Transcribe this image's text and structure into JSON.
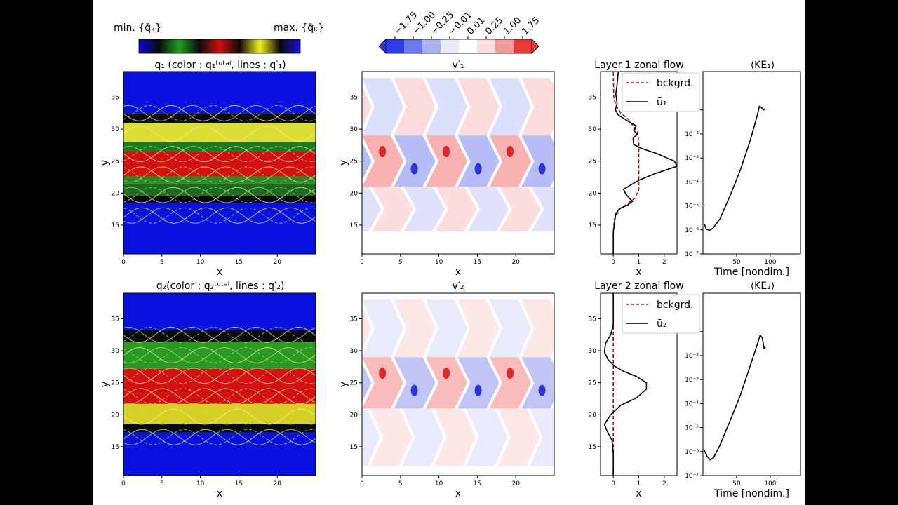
{
  "topbar": {
    "min_label": "min. {q̄ₖ}",
    "max_label": "max. {q̄ₖ}",
    "diverging_ticks": [
      "−1.75",
      "−1.00",
      "−0.25",
      "−0.01",
      "0.01",
      "0.25",
      "1.00",
      "1.75"
    ],
    "diverging_colors": [
      "#2d3de8",
      "#6b78ee",
      "#a9b1f3",
      "#e8eaf8",
      "#ffffff",
      "#fbdede",
      "#f39a9a",
      "#ec3a3a"
    ],
    "sequential_colors": [
      "#0a0ad8",
      "#0a0a0a",
      "#20a020",
      "#0a0a0a",
      "#d01010",
      "#0a0a0a",
      "#f0f020",
      "#0a0a0a",
      "#1a10d8"
    ]
  },
  "rows": [
    {
      "q_title": "q₁   (color : q₁ᵗᵒᵗᵃˡ,  lines : q′₁)",
      "v_title": "v′₁",
      "zonal_title": "Layer 1 zonal flow",
      "ke_title": "⟨KE₁⟩",
      "legend": [
        "bckgrd.",
        "ū₁"
      ]
    },
    {
      "q_title": "q₂(color : q₂ᵗᵒᵗᵃˡ,  lines : q′₂)",
      "v_title": "v′₂",
      "zonal_title": "Layer 2 zonal flow",
      "ke_title": "⟨KE₂⟩",
      "legend": [
        "bckgrd.",
        "ū₂"
      ]
    }
  ],
  "chart_data": [
    {
      "type": "heatmap",
      "panel": "q1",
      "xlabel": "x",
      "ylabel": "y",
      "xticks": [
        "0",
        "5",
        "10",
        "15",
        "20"
      ],
      "yticks": [
        "15",
        "20",
        "25",
        "30",
        "35"
      ],
      "xlim": [
        0,
        25
      ],
      "ylim": [
        10.5,
        39
      ],
      "bands": [
        {
          "y0": 10.5,
          "y1": 18.5,
          "color": "#0a12e0"
        },
        {
          "y0": 18.5,
          "y1": 19.6,
          "color": "#0a0a0a"
        },
        {
          "y0": 19.6,
          "y1": 21.5,
          "color": "#1e6a1e"
        },
        {
          "y0": 21.5,
          "y1": 22.6,
          "color": "#2a8a22"
        },
        {
          "y0": 22.6,
          "y1": 26.5,
          "color": "#d41010"
        },
        {
          "y0": 26.5,
          "y1": 28.0,
          "color": "#1e7a1e"
        },
        {
          "y0": 28.0,
          "y1": 31.0,
          "color": "#dede30"
        },
        {
          "y0": 31.0,
          "y1": 32.5,
          "color": "#0a0a0a"
        },
        {
          "y0": 32.5,
          "y1": 39.0,
          "color": "#0a12e0"
        }
      ]
    },
    {
      "type": "heatmap",
      "panel": "v1",
      "xlabel": "x",
      "ylabel": "y",
      "xticks": [
        "0",
        "5",
        "10",
        "15",
        "20"
      ],
      "yticks": [
        "15",
        "20",
        "25",
        "30",
        "35"
      ],
      "xlim": [
        0,
        25
      ],
      "ylim": [
        10.5,
        39
      ],
      "wave_period": 8.3,
      "patterns": [
        {
          "y0": 14,
          "y1": 21,
          "amplitude": 0.25
        },
        {
          "y0": 21,
          "y1": 29,
          "amplitude": 0.9
        },
        {
          "y0": 29,
          "y1": 38,
          "amplitude": 0.3
        }
      ]
    },
    {
      "type": "line",
      "panel": "zonal1",
      "xlabel": "x",
      "xticks": [
        "0",
        "1",
        "2"
      ],
      "yticks": [
        "15",
        "20",
        "25",
        "30",
        "35"
      ],
      "xlim": [
        -0.5,
        2.5
      ],
      "ylim": [
        10.5,
        39
      ],
      "series": [
        {
          "name": "bckgrd.",
          "style": "dashed",
          "color": "#c00000",
          "points": [
            [
              0,
              10.5
            ],
            [
              0,
              14
            ],
            [
              0.05,
              16
            ],
            [
              0.25,
              17.5
            ],
            [
              0.55,
              18.3
            ],
            [
              0.85,
              19.2
            ],
            [
              1.0,
              20.5
            ],
            [
              1.0,
              23
            ],
            [
              1.0,
              25
            ],
            [
              1.0,
              28
            ],
            [
              0.95,
              29.5
            ],
            [
              0.6,
              31.5
            ],
            [
              0.3,
              32.5
            ],
            [
              0.1,
              33.7
            ],
            [
              0.02,
              35
            ],
            [
              0,
              39
            ]
          ]
        },
        {
          "name": "ū₁",
          "style": "solid",
          "color": "#000000",
          "points": [
            [
              0,
              10.5
            ],
            [
              0,
              13.8
            ],
            [
              0.05,
              15.5
            ],
            [
              0.1,
              16.8
            ],
            [
              0.25,
              17.6
            ],
            [
              0.55,
              18.1
            ],
            [
              0.75,
              18.7
            ],
            [
              0.5,
              19.8
            ],
            [
              0.4,
              20.6
            ],
            [
              0.65,
              21.2
            ],
            [
              1.0,
              22.0
            ],
            [
              1.6,
              23.0
            ],
            [
              2.5,
              24.2
            ],
            [
              2.4,
              25.0
            ],
            [
              1.7,
              26.2
            ],
            [
              1.1,
              27.0
            ],
            [
              0.8,
              27.6
            ],
            [
              0.78,
              28.6
            ],
            [
              0.95,
              29.2
            ],
            [
              0.8,
              29.8
            ],
            [
              0.9,
              30.5
            ],
            [
              0.6,
              31.2
            ],
            [
              0.2,
              32.2
            ],
            [
              0.08,
              33.0
            ],
            [
              0.15,
              34.0
            ],
            [
              0.1,
              35.5
            ],
            [
              0.15,
              37
            ],
            [
              0.2,
              39
            ]
          ]
        }
      ]
    },
    {
      "type": "line",
      "panel": "ke1",
      "xlabel": "Time [nondim.]",
      "xticks": [
        "50",
        "100"
      ],
      "yticks": [
        "10⁻⁷",
        "10⁻⁶",
        "10⁻⁵",
        "10⁻⁴",
        "10⁻³",
        "10⁻²",
        "10⁻¹"
      ],
      "xlim": [
        0,
        145
      ],
      "ylim_log10": [
        -7,
        0.6
      ],
      "log_y": true,
      "series": [
        {
          "name": "⟨KE₁⟩",
          "points": [
            [
              2,
              -5.75
            ],
            [
              5,
              -5.97
            ],
            [
              10,
              -6.02
            ],
            [
              15,
              -5.92
            ],
            [
              25,
              -5.55
            ],
            [
              40,
              -4.6
            ],
            [
              55,
              -3.55
            ],
            [
              70,
              -2.3
            ],
            [
              80,
              -1.3
            ],
            [
              84,
              -0.85
            ],
            [
              87,
              -0.9
            ],
            [
              90,
              -1.0
            ],
            [
              92,
              -0.95
            ]
          ]
        }
      ]
    },
    {
      "type": "heatmap",
      "panel": "q2",
      "xlabel": "x",
      "ylabel": "y",
      "xticks": [
        "0",
        "5",
        "10",
        "15",
        "20"
      ],
      "yticks": [
        "15",
        "20",
        "25",
        "30",
        "35"
      ],
      "xlim": [
        0,
        25
      ],
      "ylim": [
        10.5,
        39
      ],
      "bands": [
        {
          "y0": 10.5,
          "y1": 17.2,
          "color": "#0a12e0"
        },
        {
          "y0": 17.2,
          "y1": 18.6,
          "color": "#0a0a0a"
        },
        {
          "y0": 18.6,
          "y1": 21.7,
          "color": "#d8d020"
        },
        {
          "y0": 21.7,
          "y1": 27.2,
          "color": "#d41010"
        },
        {
          "y0": 27.2,
          "y1": 31.4,
          "color": "#2a9a20"
        },
        {
          "y0": 31.4,
          "y1": 33.2,
          "color": "#0a0a0a"
        },
        {
          "y0": 33.2,
          "y1": 39.0,
          "color": "#0a12e0"
        }
      ]
    },
    {
      "type": "heatmap",
      "panel": "v2",
      "xlabel": "x",
      "ylabel": "y",
      "xticks": [
        "0",
        "5",
        "10",
        "15",
        "20"
      ],
      "yticks": [
        "15",
        "20",
        "25",
        "30",
        "35"
      ],
      "xlim": [
        0,
        25
      ],
      "ylim": [
        10.5,
        39
      ],
      "wave_period": 8.3,
      "patterns": [
        {
          "y0": 12,
          "y1": 21,
          "amplitude": 0.12
        },
        {
          "y0": 21,
          "y1": 29,
          "amplitude": 0.75
        },
        {
          "y0": 29,
          "y1": 38,
          "amplitude": 0.12
        }
      ]
    },
    {
      "type": "line",
      "panel": "zonal2",
      "xlabel": "x",
      "xticks": [
        "0",
        "1",
        "2"
      ],
      "yticks": [
        "15",
        "20",
        "25",
        "30",
        "35"
      ],
      "xlim": [
        -0.5,
        2.5
      ],
      "ylim": [
        10.5,
        39
      ],
      "series": [
        {
          "name": "bckgrd.",
          "style": "dashed",
          "color": "#c00000",
          "points": [
            [
              0,
              10.5
            ],
            [
              0,
              39
            ]
          ]
        },
        {
          "name": "ū₂",
          "style": "solid",
          "color": "#000000",
          "points": [
            [
              0,
              10.5
            ],
            [
              0,
              14
            ],
            [
              -0.05,
              16
            ],
            [
              -0.25,
              17.5
            ],
            [
              -0.35,
              18.5
            ],
            [
              -0.1,
              20
            ],
            [
              0.3,
              21.5
            ],
            [
              0.9,
              22.6
            ],
            [
              1.3,
              24.0
            ],
            [
              1.3,
              25.0
            ],
            [
              0.9,
              26.0
            ],
            [
              0.4,
              26.8
            ],
            [
              0.05,
              27.6
            ],
            [
              -0.2,
              28.6
            ],
            [
              -0.35,
              29.8
            ],
            [
              -0.3,
              31.2
            ],
            [
              -0.1,
              32.5
            ],
            [
              0,
              34
            ],
            [
              0,
              39
            ]
          ]
        }
      ]
    },
    {
      "type": "line",
      "panel": "ke2",
      "xlabel": "Time [nondim.]",
      "xticks": [
        "50",
        "100"
      ],
      "yticks": [
        "10⁻⁷",
        "10⁻⁶",
        "10⁻⁵",
        "10⁻⁴",
        "10⁻³",
        "10⁻²",
        "10⁻¹"
      ],
      "xlim": [
        0,
        145
      ],
      "ylim_log10": [
        -7,
        0.6
      ],
      "log_y": true,
      "series": [
        {
          "name": "⟨KE₂⟩",
          "points": [
            [
              2,
              -5.95
            ],
            [
              6,
              -6.2
            ],
            [
              11,
              -6.35
            ],
            [
              16,
              -6.25
            ],
            [
              25,
              -5.75
            ],
            [
              40,
              -4.75
            ],
            [
              55,
              -3.7
            ],
            [
              70,
              -2.45
            ],
            [
              80,
              -1.6
            ],
            [
              85,
              -1.15
            ],
            [
              88,
              -1.25
            ],
            [
              91,
              -1.7
            ],
            [
              93,
              -1.65
            ]
          ]
        }
      ]
    }
  ]
}
